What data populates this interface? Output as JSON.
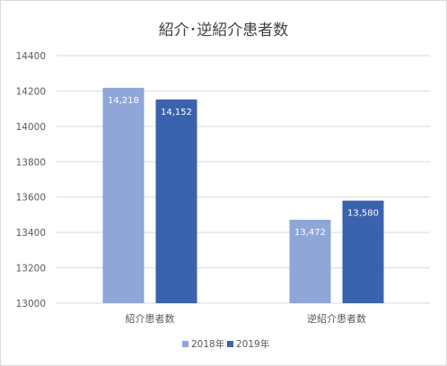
{
  "chart_data": {
    "type": "bar",
    "title": "紹介･逆紹介患者数",
    "categories": [
      "紹介患者数",
      "逆紹介患者数"
    ],
    "series": [
      {
        "name": "2018年",
        "values": [
          14218,
          13472
        ],
        "labels": [
          "14,218",
          "13,472"
        ],
        "color": "#8FA6D8"
      },
      {
        "name": "2019年",
        "values": [
          14152,
          13580
        ],
        "labels": [
          "14,152",
          "13,580"
        ],
        "color": "#3A62AD"
      }
    ],
    "ylim": [
      13000,
      14400
    ],
    "yticks": [
      13000,
      13200,
      13400,
      13600,
      13800,
      14000,
      14200,
      14400
    ],
    "xlabel": "",
    "ylabel": "",
    "grid": true,
    "legend_position": "bottom",
    "gridline_color": "#d9d9d9"
  }
}
